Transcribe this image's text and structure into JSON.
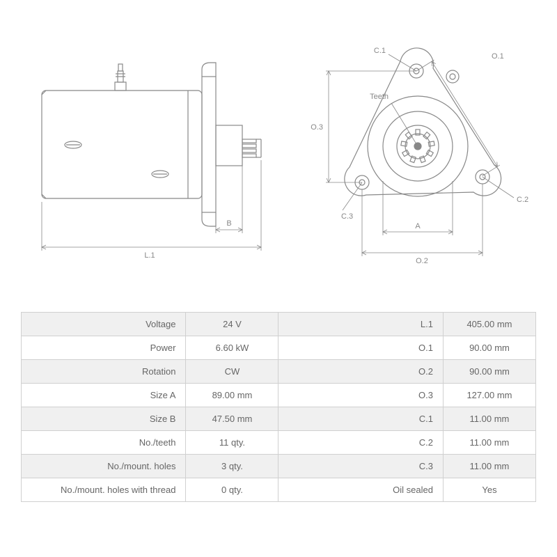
{
  "diagram": {
    "labels": {
      "L1": "L.1",
      "B": "B",
      "A": "A",
      "O1": "O.1",
      "O2": "O.2",
      "O3": "O.3",
      "C1": "C.1",
      "C2": "C.2",
      "C3": "C.3",
      "Teeth": "Teeth"
    },
    "colors": {
      "line": "#888888",
      "text": "#888888",
      "bg": "#ffffff"
    }
  },
  "specs": {
    "rows": [
      {
        "l1": "Voltage",
        "v1": "24 V",
        "l2": "L.1",
        "v2": "405.00 mm"
      },
      {
        "l1": "Power",
        "v1": "6.60 kW",
        "l2": "O.1",
        "v2": "90.00 mm"
      },
      {
        "l1": "Rotation",
        "v1": "CW",
        "l2": "O.2",
        "v2": "90.00 mm"
      },
      {
        "l1": "Size A",
        "v1": "89.00 mm",
        "l2": "O.3",
        "v2": "127.00 mm"
      },
      {
        "l1": "Size B",
        "v1": "47.50 mm",
        "l2": "C.1",
        "v2": "11.00 mm"
      },
      {
        "l1": "No./teeth",
        "v1": "11 qty.",
        "l2": "C.2",
        "v2": "11.00 mm"
      },
      {
        "l1": "No./mount. holes",
        "v1": "3 qty.",
        "l2": "C.3",
        "v2": "11.00 mm"
      },
      {
        "l1": "No./mount. holes with thread",
        "v1": "0 qty.",
        "l2": "Oil sealed",
        "v2": "Yes"
      }
    ]
  }
}
